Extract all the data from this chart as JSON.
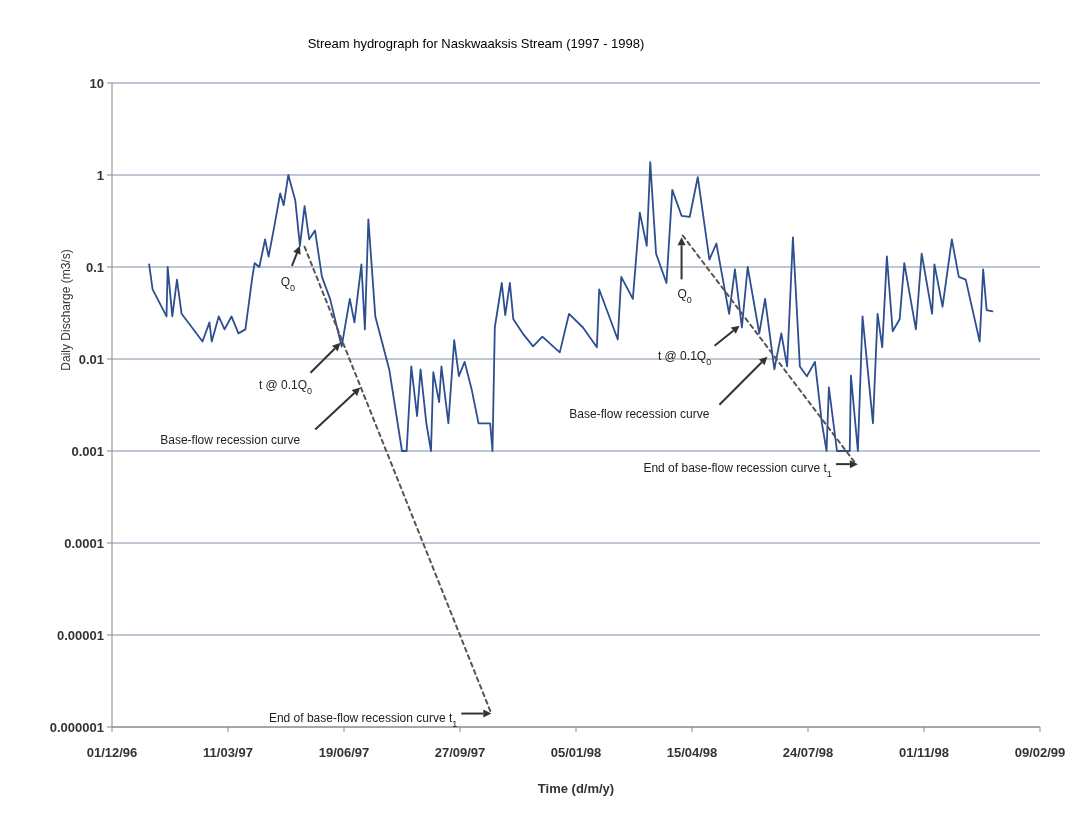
{
  "chart_data": {
    "type": "line",
    "title": "Stream hydrograph for Naskwaaksis Stream (1997 - 1998)",
    "xlabel": "Time (d/m/y)",
    "ylabel": "Daily Discharge (m3/s)",
    "log": "y",
    "grid": "y",
    "line_style": "solid",
    "xlim": [
      "1996-12-01",
      "1999-02-09"
    ],
    "xticks": [
      {
        "value": "1996-12-01",
        "label": "01/12/96"
      },
      {
        "value": "1997-03-11",
        "label": "11/03/97"
      },
      {
        "value": "1997-06-19",
        "label": "19/06/97"
      },
      {
        "value": "1997-09-27",
        "label": "27/09/97"
      },
      {
        "value": "1998-01-05",
        "label": "05/01/98"
      },
      {
        "value": "1998-04-15",
        "label": "15/04/98"
      },
      {
        "value": "1998-07-24",
        "label": "24/07/98"
      },
      {
        "value": "1998-11-01",
        "label": "01/11/98"
      },
      {
        "value": "1999-02-09",
        "label": "09/02/99"
      }
    ],
    "ylim": [
      1e-06,
      10
    ],
    "yticks": [
      {
        "value": 1e-06,
        "label": "0.000001"
      },
      {
        "value": 1e-05,
        "label": "0.00001"
      },
      {
        "value": 0.0001,
        "label": "0.0001"
      },
      {
        "value": 0.001,
        "label": "0.001"
      },
      {
        "value": 0.01,
        "label": "0.01"
      },
      {
        "value": 0.1,
        "label": "0.1"
      },
      {
        "value": 1,
        "label": "1"
      },
      {
        "value": 10,
        "label": "10"
      }
    ],
    "series": [
      {
        "color": "#2e4f8f",
        "x": [
          "1997-01-02",
          "1997-01-05",
          "1997-01-17",
          "1997-01-18",
          "1997-01-22",
          "1997-01-26",
          "1997-01-30",
          "1997-02-08",
          "1997-02-17",
          "1997-02-23",
          "1997-02-25",
          "1997-03-03",
          "1997-03-08",
          "1997-03-14",
          "1997-03-20",
          "1997-03-26",
          "1997-04-01",
          "1997-04-03",
          "1997-04-07",
          "1997-04-12",
          "1997-04-15",
          "1997-04-20",
          "1997-04-25",
          "1997-04-28",
          "1997-05-02",
          "1997-05-08",
          "1997-05-12",
          "1997-05-16",
          "1997-05-20",
          "1997-05-25",
          "1997-05-31",
          "1997-06-07",
          "1997-06-17",
          "1997-06-24",
          "1997-06-28",
          "1997-07-04",
          "1997-07-07",
          "1997-07-10",
          "1997-07-16",
          "1997-07-28",
          "1997-08-08",
          "1997-08-12",
          "1997-08-16",
          "1997-08-21",
          "1997-08-24",
          "1997-08-29",
          "1997-09-02",
          "1997-09-04",
          "1997-09-09",
          "1997-09-11",
          "1997-09-17",
          "1997-09-22",
          "1997-09-26",
          "1997-10-01",
          "1997-10-07",
          "1997-10-13",
          "1997-10-23",
          "1997-10-25",
          "1997-10-27",
          "1997-11-02",
          "1997-11-05",
          "1997-11-09",
          "1997-11-12",
          "1997-11-20",
          "1997-11-29",
          "1997-12-07",
          "1997-12-22",
          "1997-12-30",
          "1998-01-11",
          "1998-01-23",
          "1998-01-25",
          "1998-02-10",
          "1998-02-13",
          "1998-02-23",
          "1998-03-01",
          "1998-03-07",
          "1998-03-10",
          "1998-03-15",
          "1998-03-24",
          "1998-03-29",
          "1998-04-06",
          "1998-04-13",
          "1998-04-20",
          "1998-04-30",
          "1998-05-06",
          "1998-05-17",
          "1998-05-22",
          "1998-05-28",
          "1998-06-02",
          "1998-06-12",
          "1998-06-17",
          "1998-06-25",
          "1998-07-01",
          "1998-07-06",
          "1998-07-11",
          "1998-07-17",
          "1998-07-23",
          "1998-07-30",
          "1998-08-05",
          "1998-08-09",
          "1998-08-11",
          "1998-08-18",
          "1998-08-29",
          "1998-08-30",
          "1998-09-05",
          "1998-09-09",
          "1998-09-18",
          "1998-09-22",
          "1998-09-26",
          "1998-09-30",
          "1998-10-05",
          "1998-10-11",
          "1998-10-15",
          "1998-10-25",
          "1998-10-30",
          "1998-11-08",
          "1998-11-10",
          "1998-11-17",
          "1998-11-25",
          "1998-12-01",
          "1998-12-07",
          "1998-12-19",
          "1998-12-22",
          "1998-12-25",
          "1998-12-30"
        ],
        "values": [
          0.107,
          0.057,
          0.029,
          0.1,
          0.029,
          0.073,
          0.031,
          0.022,
          0.0155,
          0.025,
          0.0155,
          0.029,
          0.021,
          0.029,
          0.019,
          0.021,
          0.078,
          0.11,
          0.1,
          0.2,
          0.13,
          0.28,
          0.63,
          0.47,
          1.0,
          0.53,
          0.17,
          0.46,
          0.2,
          0.25,
          0.078,
          0.045,
          0.0137,
          0.045,
          0.025,
          0.107,
          0.021,
          0.33,
          0.029,
          0.0077,
          0.001,
          0.001,
          0.0083,
          0.0024,
          0.0077,
          0.002,
          0.001,
          0.0072,
          0.0034,
          0.0083,
          0.002,
          0.016,
          0.0065,
          0.0093,
          0.0047,
          0.002,
          0.002,
          0.001,
          0.022,
          0.067,
          0.03,
          0.067,
          0.027,
          0.019,
          0.0137,
          0.0175,
          0.0118,
          0.031,
          0.022,
          0.0134,
          0.057,
          0.0163,
          0.078,
          0.045,
          0.39,
          0.17,
          1.38,
          0.14,
          0.067,
          0.69,
          0.36,
          0.35,
          0.95,
          0.12,
          0.18,
          0.031,
          0.094,
          0.022,
          0.1,
          0.019,
          0.045,
          0.0077,
          0.019,
          0.0083,
          0.21,
          0.0083,
          0.0065,
          0.0093,
          0.002,
          0.001,
          0.0049,
          0.001,
          0.001,
          0.0066,
          0.001,
          0.029,
          0.002,
          0.031,
          0.0134,
          0.13,
          0.02,
          0.027,
          0.11,
          0.021,
          0.14,
          0.031,
          0.107,
          0.037,
          0.2,
          0.078,
          0.073,
          0.0155,
          0.094,
          0.034,
          0.033
        ]
      },
      {
        "color": "#555555",
        "line_style": "dashed",
        "x": [
          "1997-05-16",
          "1997-10-24"
        ],
        "values": [
          0.166,
          1.4e-06
        ]
      },
      {
        "color": "#555555",
        "line_style": "dashed",
        "x": [
          "1998-04-07",
          "1998-09-02"
        ],
        "values": [
          0.22,
          0.00076
        ]
      }
    ],
    "annotations": [
      {
        "text": "Q$_{0}$",
        "x": "1997-05-12",
        "y": 0.17
      },
      {
        "text": "t @ 0.1Q$_{0}$",
        "x": "1997-06-16",
        "y": 0.015
      },
      {
        "text": "Base-flow recession curve",
        "x": "1997-07-03",
        "y": 0.0049
      },
      {
        "text": "End of base-flow recession curve  t$_{1}$",
        "x": "1997-10-24",
        "y": 1.4e-06
      },
      {
        "text": "Q$_{0}$",
        "x": "1998-04-06",
        "y": 0.21
      },
      {
        "text": "t @ 0.1Q$_{0}$",
        "x": "1998-05-26",
        "y": 0.023
      },
      {
        "text": "Base-flow recession curve",
        "x": "1998-06-19",
        "y": 0.0106
      },
      {
        "text": "End of base-flow recession curve  t$_{1}$",
        "x": "1998-09-05",
        "y": 0.00072
      }
    ]
  }
}
